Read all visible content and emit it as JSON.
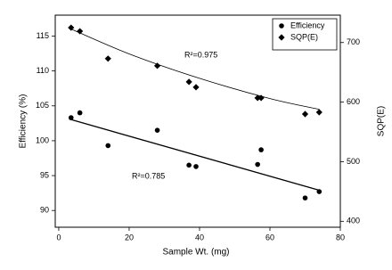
{
  "chart_data": {
    "type": "scatter",
    "x_label": "Sample Wt. (mg)",
    "y_label": "Efficiency (%)",
    "y2_label": "SQP(E)",
    "xlim": [
      -1,
      80
    ],
    "ylim": [
      87.6,
      118
    ],
    "y2lim": [
      390,
      746
    ],
    "xticks": [
      0,
      20,
      40,
      60,
      80
    ],
    "yticks": [
      90,
      95,
      100,
      105,
      110,
      115
    ],
    "y2ticks": [
      400,
      500,
      600,
      700
    ],
    "legend": "top-right",
    "series": [
      {
        "name": "Efficiency",
        "color": "#000000",
        "marker": "circle",
        "x": [
          3.5,
          6,
          14,
          28,
          37,
          39,
          56.5,
          57.5,
          70,
          74
        ],
        "values": [
          103.3,
          104,
          99.3,
          101.5,
          96.5,
          96.3,
          96.6,
          98.7,
          91.8,
          92.7
        ]
      },
      {
        "name": "SQP(E)",
        "color": "#000000",
        "marker": "diamond",
        "axis": "y2",
        "x": [
          3.5,
          6,
          14,
          28,
          37,
          39,
          56.5,
          57.5,
          70,
          74
        ],
        "values": [
          725,
          719,
          673,
          661,
          634,
          625,
          607,
          607,
          580,
          583
        ]
      }
    ],
    "trendlines": [
      {
        "x": [
          3,
          74
        ],
        "values": [
          103.1,
          92.9
        ]
      },
      {
        "axis": "y2",
        "x": [
          3,
          20,
          40,
          60,
          74
        ],
        "values": [
          724,
          681,
          640,
          606,
          588
        ]
      }
    ],
    "annotations": [
      "R²=0.975",
      "R²=0.785"
    ]
  }
}
